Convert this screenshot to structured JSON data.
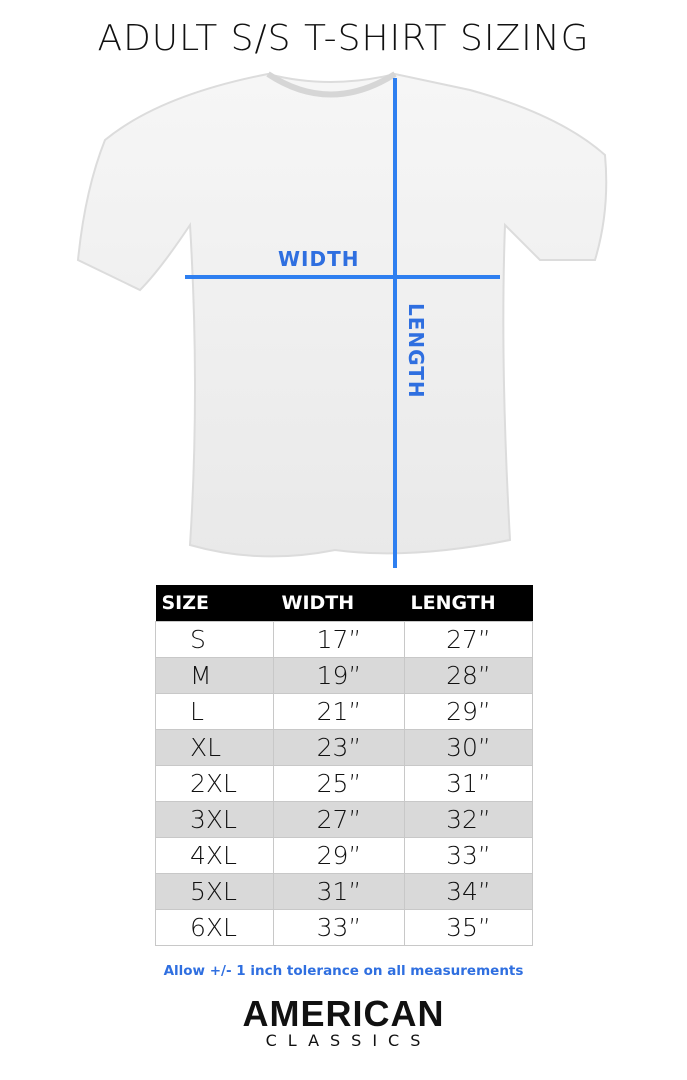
{
  "title": "ADULT S/S T-SHIRT SIZING",
  "diagram": {
    "width_label": "WIDTH",
    "length_label": "LENGTH",
    "accent_color": "#2e7ff0",
    "label_color": "#2f6fe0"
  },
  "table": {
    "headers": [
      "SIZE",
      "WIDTH",
      "LENGTH"
    ],
    "rows": [
      [
        "S",
        "17”",
        "27”"
      ],
      [
        "M",
        "19”",
        "28”"
      ],
      [
        "L",
        "21”",
        "29”"
      ],
      [
        "XL",
        "23”",
        "30”"
      ],
      [
        "2XL",
        "25”",
        "31”"
      ],
      [
        "3XL",
        "27”",
        "32”"
      ],
      [
        "4XL",
        "29”",
        "33”"
      ],
      [
        "5XL",
        "31”",
        "34”"
      ],
      [
        "6XL",
        "33”",
        "35”"
      ]
    ]
  },
  "note": "Allow +/- 1 inch tolerance on all measurements",
  "logo": {
    "line1": "AMERICAN",
    "line2": "CLASSICS"
  }
}
